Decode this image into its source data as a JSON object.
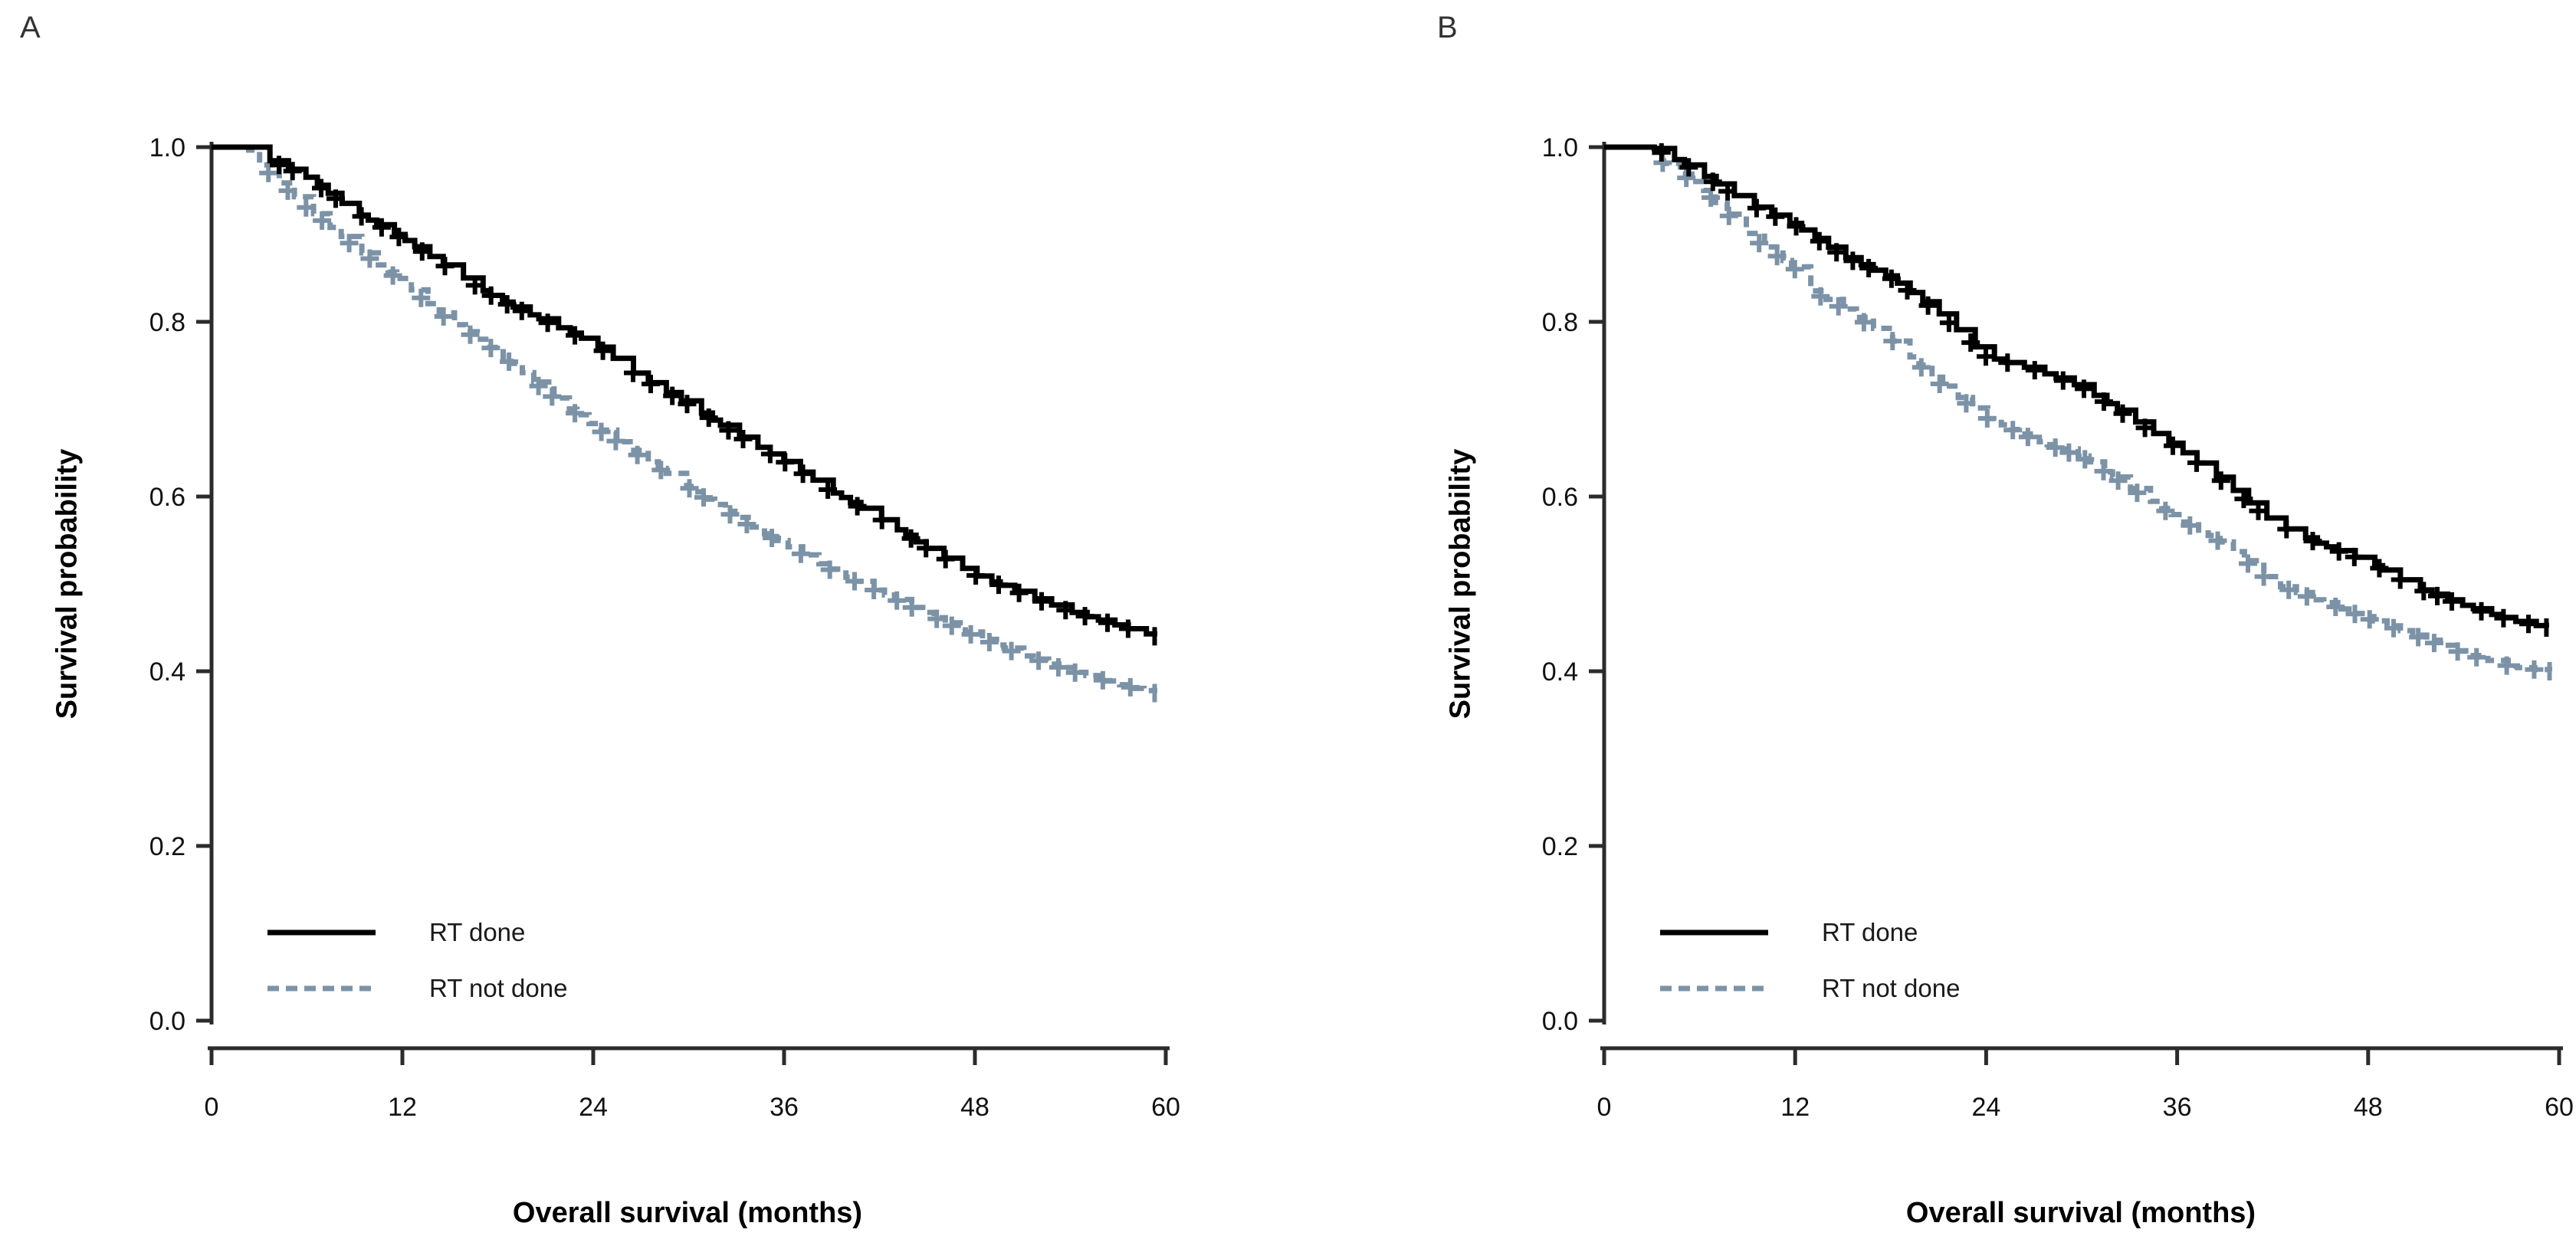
{
  "figure": {
    "background": "#ffffff",
    "axis_color": "#2b2b2b",
    "text_color": "#111111"
  },
  "chart_data": [
    {
      "type": "line",
      "subtype": "kaplan-meier-step",
      "panel_label": "A",
      "title": "",
      "xlabel": "Overall survival (months)",
      "ylabel": "Survival probability",
      "xlim": [
        0,
        60
      ],
      "ylim": [
        0.0,
        1.0
      ],
      "x_ticks": [
        0,
        12,
        24,
        36,
        48,
        60
      ],
      "y_ticks": [
        1.0,
        0.8,
        0.6,
        0.4,
        0.2,
        0.0
      ],
      "grid": false,
      "legend_position": "bottom-left",
      "series": [
        {
          "name": "RT done",
          "line_style": "solid",
          "color": "#000000",
          "censor_marks": true,
          "x": [
            0,
            2.6,
            3,
            6,
            9,
            12,
            15,
            18,
            21,
            24,
            27,
            30,
            33,
            36,
            39,
            42,
            45,
            48,
            51,
            54,
            57,
            59.3
          ],
          "y": [
            1.0,
            1.0,
            0.99,
            0.965,
            0.925,
            0.895,
            0.86,
            0.825,
            0.8,
            0.775,
            0.735,
            0.705,
            0.67,
            0.64,
            0.605,
            0.575,
            0.54,
            0.51,
            0.488,
            0.468,
            0.452,
            0.44
          ]
        },
        {
          "name": "RT not done",
          "line_style": "dashed",
          "color": "#7C93A7",
          "censor_marks": true,
          "x": [
            0,
            2.2,
            3,
            6,
            9,
            12,
            15,
            18,
            21,
            24,
            27,
            30,
            33,
            36,
            39,
            42,
            45,
            48,
            51,
            54,
            57,
            59.3
          ],
          "y": [
            1.0,
            1.0,
            0.98,
            0.93,
            0.885,
            0.845,
            0.8,
            0.765,
            0.72,
            0.68,
            0.645,
            0.61,
            0.575,
            0.545,
            0.515,
            0.49,
            0.465,
            0.44,
            0.418,
            0.4,
            0.385,
            0.375
          ]
        }
      ]
    },
    {
      "type": "line",
      "subtype": "kaplan-meier-step",
      "panel_label": "B",
      "title": "",
      "xlabel": "Overall survival (months)",
      "ylabel": "Survival probability",
      "xlim": [
        0,
        60
      ],
      "ylim": [
        0.0,
        1.0
      ],
      "x_ticks": [
        0,
        12,
        24,
        36,
        48,
        60
      ],
      "y_ticks": [
        1.0,
        0.8,
        0.6,
        0.4,
        0.2,
        0.0
      ],
      "grid": false,
      "legend_position": "bottom-left",
      "series": [
        {
          "name": "RT done",
          "line_style": "solid",
          "color": "#000000",
          "censor_marks": true,
          "x": [
            0,
            3,
            4,
            6,
            9,
            12,
            15,
            18,
            21,
            24,
            27,
            30,
            33,
            36,
            39,
            42,
            45,
            48,
            51,
            54,
            57,
            59.2
          ],
          "y": [
            1.0,
            1.0,
            0.99,
            0.97,
            0.935,
            0.91,
            0.875,
            0.85,
            0.81,
            0.76,
            0.745,
            0.725,
            0.69,
            0.655,
            0.615,
            0.57,
            0.545,
            0.525,
            0.495,
            0.475,
            0.458,
            0.45
          ]
        },
        {
          "name": "RT not done",
          "line_style": "dashed",
          "color": "#7C93A7",
          "censor_marks": true,
          "x": [
            0,
            2.8,
            3,
            6,
            9,
            12,
            13,
            15,
            18,
            21,
            24,
            27,
            30,
            33,
            36,
            39,
            42,
            45,
            48,
            51,
            54,
            57,
            59.4
          ],
          "y": [
            1.0,
            1.0,
            0.99,
            0.955,
            0.9,
            0.86,
            0.835,
            0.815,
            0.78,
            0.73,
            0.69,
            0.665,
            0.645,
            0.61,
            0.575,
            0.545,
            0.5,
            0.48,
            0.46,
            0.44,
            0.42,
            0.405,
            0.4
          ]
        }
      ]
    }
  ]
}
